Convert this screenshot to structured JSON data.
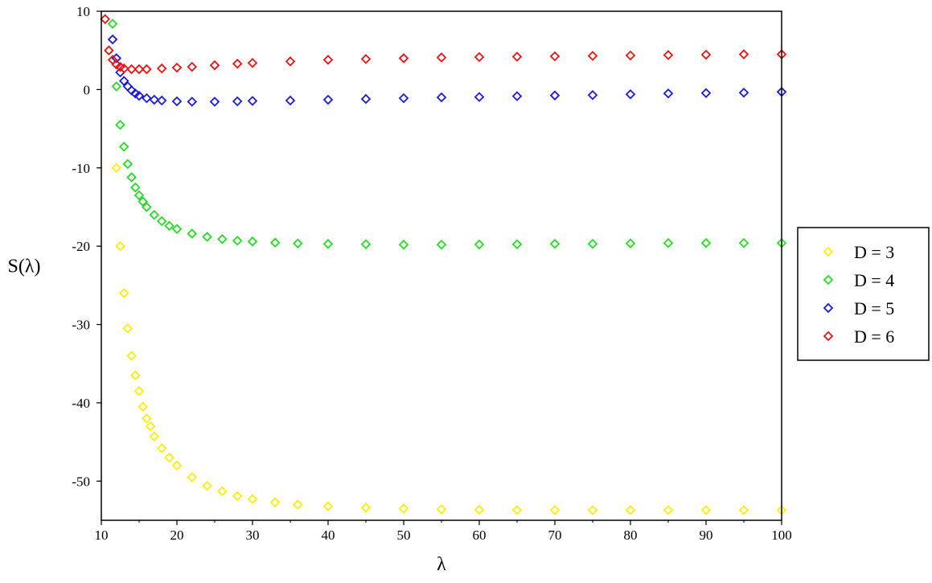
{
  "chart_data": {
    "type": "scatter",
    "title": "",
    "xlabel": "λ",
    "ylabel": "S(λ)",
    "xlim": [
      10,
      100
    ],
    "ylim": [
      -55,
      10
    ],
    "xticks": [
      "10",
      "20",
      "30",
      "40",
      "50",
      "60",
      "70",
      "80",
      "90",
      "100"
    ],
    "yticks": [
      "10",
      "0",
      "-10",
      "-20",
      "-30",
      "-40",
      "-50"
    ],
    "grid": false,
    "legend": "right",
    "marker": "diamond-open",
    "series": [
      {
        "name": "D = 3",
        "color": "#ffee00",
        "x": [
          12,
          12.5,
          13,
          13.5,
          14,
          14.5,
          15,
          15.5,
          16,
          16.5,
          17,
          18,
          19,
          20,
          22,
          24,
          26,
          28,
          30,
          33,
          36,
          40,
          45,
          50,
          55,
          60,
          65,
          70,
          75,
          80,
          85,
          90,
          95,
          100
        ],
        "y": [
          -10,
          -20,
          -26,
          -30.5,
          -34,
          -36.5,
          -38.5,
          -40.5,
          -42,
          -43,
          -44.3,
          -45.8,
          -47,
          -48,
          -49.5,
          -50.6,
          -51.3,
          -51.9,
          -52.3,
          -52.7,
          -53,
          -53.2,
          -53.4,
          -53.5,
          -53.6,
          -53.65,
          -53.7,
          -53.7,
          -53.7,
          -53.7,
          -53.7,
          -53.7,
          -53.7,
          -53.7
        ]
      },
      {
        "name": "D = 4",
        "color": "#22dd22",
        "x": [
          11.5,
          12,
          12.5,
          13,
          13.5,
          14,
          14.5,
          15,
          15.5,
          16,
          17,
          18,
          19,
          20,
          22,
          24,
          26,
          28,
          30,
          33,
          36,
          40,
          45,
          50,
          55,
          60,
          65,
          70,
          75,
          80,
          85,
          90,
          95,
          100
        ],
        "y": [
          8.4,
          0.4,
          -4.5,
          -7.3,
          -9.5,
          -11.2,
          -12.5,
          -13.5,
          -14.3,
          -15,
          -16,
          -16.8,
          -17.4,
          -17.8,
          -18.4,
          -18.8,
          -19.1,
          -19.3,
          -19.4,
          -19.55,
          -19.65,
          -19.7,
          -19.75,
          -19.8,
          -19.8,
          -19.78,
          -19.75,
          -19.7,
          -19.7,
          -19.65,
          -19.6,
          -19.6,
          -19.6,
          -19.6
        ]
      },
      {
        "name": "D = 5",
        "color": "#1a1add",
        "x": [
          11.5,
          12,
          12.5,
          13,
          13.5,
          14,
          14.5,
          15,
          16,
          17,
          18,
          20,
          22,
          25,
          28,
          30,
          35,
          40,
          45,
          50,
          55,
          60,
          65,
          70,
          75,
          80,
          85,
          90,
          95,
          100
        ],
        "y": [
          6.4,
          4,
          2.2,
          1.1,
          0.4,
          -0.1,
          -0.5,
          -0.8,
          -1.1,
          -1.3,
          -1.4,
          -1.5,
          -1.55,
          -1.55,
          -1.5,
          -1.45,
          -1.4,
          -1.3,
          -1.2,
          -1.1,
          -1,
          -0.95,
          -0.85,
          -0.75,
          -0.7,
          -0.6,
          -0.5,
          -0.45,
          -0.4,
          -0.3
        ]
      },
      {
        "name": "D = 6",
        "color": "#ee1111",
        "x": [
          10.5,
          11,
          11.5,
          12,
          12.5,
          13,
          14,
          15,
          16,
          18,
          20,
          22,
          25,
          28,
          30,
          35,
          40,
          45,
          50,
          55,
          60,
          65,
          70,
          75,
          80,
          85,
          90,
          95,
          100
        ],
        "y": [
          9,
          5,
          3.8,
          3.2,
          2.9,
          2.7,
          2.6,
          2.6,
          2.6,
          2.7,
          2.8,
          2.9,
          3.1,
          3.3,
          3.4,
          3.6,
          3.8,
          3.9,
          4,
          4.1,
          4.15,
          4.2,
          4.25,
          4.3,
          4.35,
          4.4,
          4.45,
          4.5,
          4.5
        ]
      }
    ]
  }
}
